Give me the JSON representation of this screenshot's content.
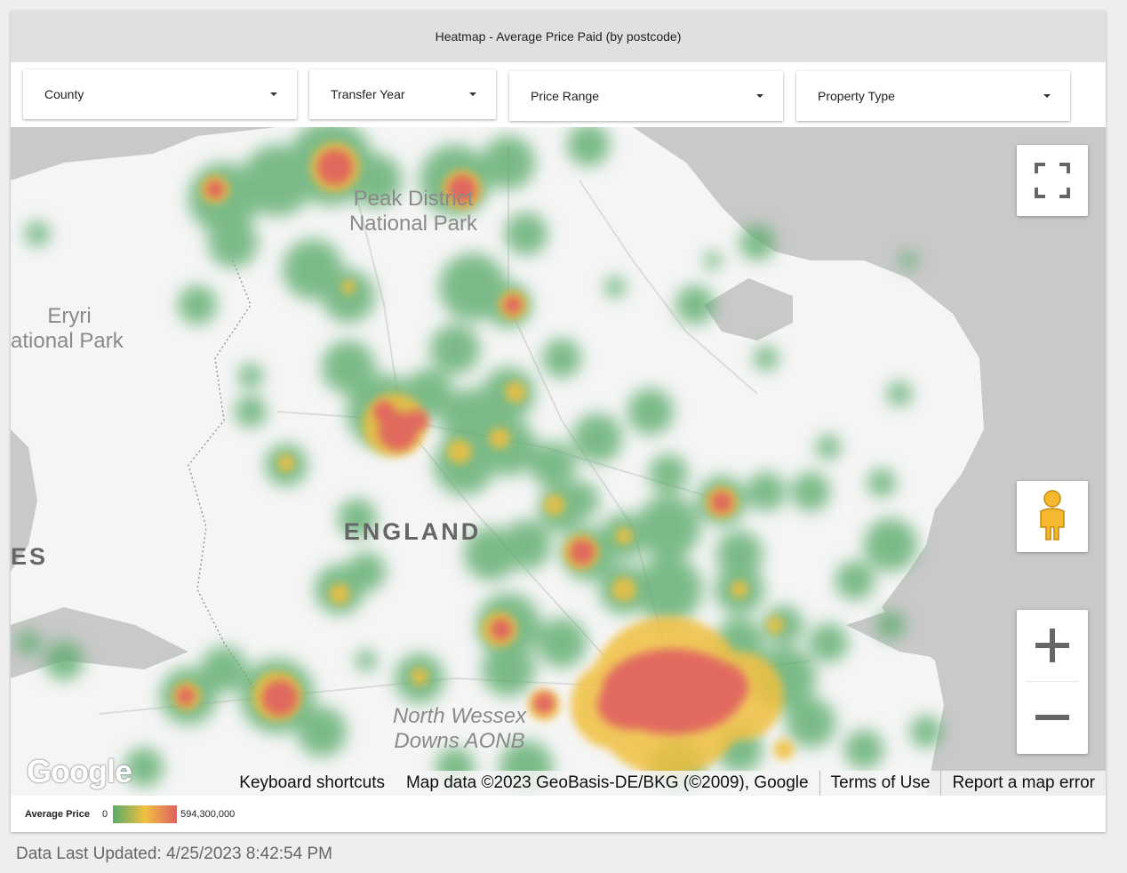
{
  "title": "Heatmap - Average Price Paid (by postcode)",
  "filters": [
    {
      "label": "County"
    },
    {
      "label": "Transfer Year"
    },
    {
      "label": "Price Range"
    },
    {
      "label": "Property Type"
    }
  ],
  "map": {
    "place_labels": [
      "Peak District",
      "National Park",
      "Eryri",
      "ational Park",
      "ENGLAND",
      "ES",
      "North Wessex",
      "Downs AONB"
    ],
    "attribution": {
      "keyboard": "Keyboard shortcuts",
      "map_data": "Map data ©2023 GeoBasis-DE/BKG (©2009), Google",
      "terms": "Terms of Use",
      "report": "Report a map error"
    },
    "logo": "Google",
    "controls": [
      "fullscreen-icon",
      "pegman-icon",
      "zoom-in-icon",
      "zoom-out-icon"
    ],
    "colors": {
      "water": "#c9c9c9",
      "land": "#f5f5f5",
      "low": "#5aaa6a",
      "mid": "#f0c040",
      "high": "#e06060"
    }
  },
  "legend": {
    "label": "Average Price",
    "min": "0",
    "max": "594,300,000"
  },
  "footer": "Data Last Updated: 4/25/2023 8:42:54 PM"
}
